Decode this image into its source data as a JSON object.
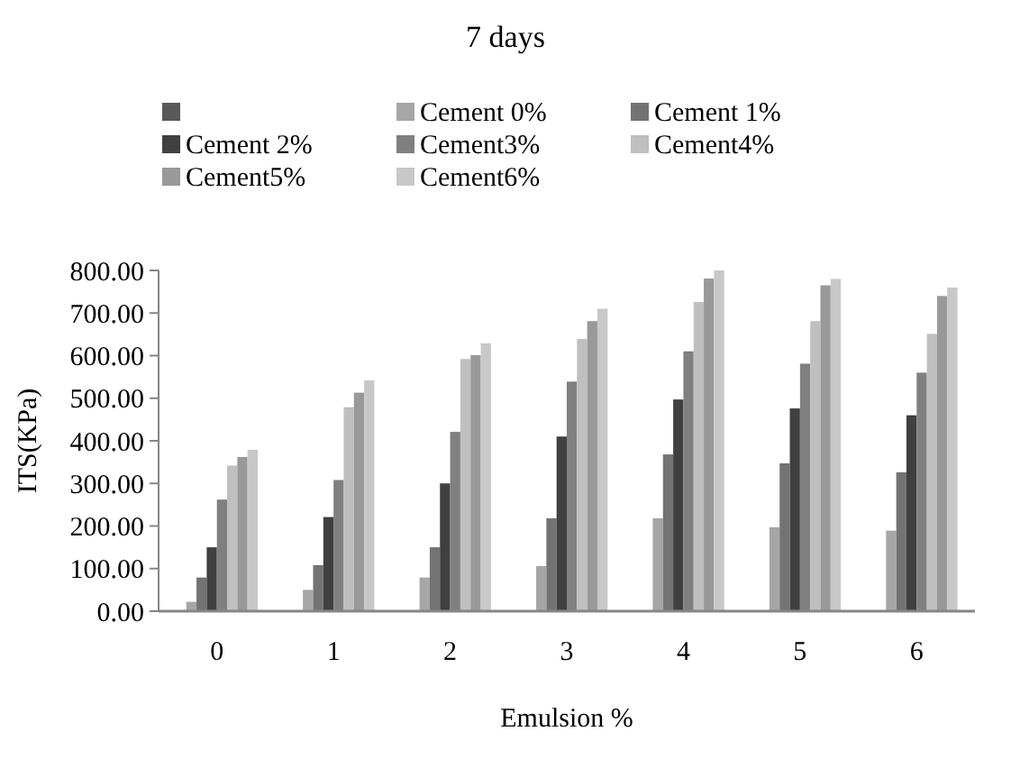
{
  "chart_data": {
    "type": "bar",
    "title": "7 days",
    "xlabel": "Emulsion %",
    "ylabel": "ITS(KPa)",
    "categories": [
      "0",
      "1",
      "2",
      "3",
      "4",
      "5",
      "6"
    ],
    "ylim": [
      0,
      800
    ],
    "yticks": [
      {
        "value": 0,
        "label": "0.00"
      },
      {
        "value": 100,
        "label": "100.00"
      },
      {
        "value": 200,
        "label": "200.00"
      },
      {
        "value": 300,
        "label": "300.00"
      },
      {
        "value": 400,
        "label": "400.00"
      },
      {
        "value": 500,
        "label": "500.00"
      },
      {
        "value": 600,
        "label": "600.00"
      },
      {
        "value": 700,
        "label": "700.00"
      },
      {
        "value": 800,
        "label": "800.00"
      }
    ],
    "legend": "top",
    "grid": false,
    "series": [
      {
        "color": "#595959",
        "values": [
          null,
          null,
          null,
          null,
          null,
          null,
          null
        ]
      },
      {
        "name": "Cement 0%",
        "color": "#a6a6a6",
        "values": [
          22,
          50,
          79,
          106,
          218,
          197,
          189
        ]
      },
      {
        "name": "Cement 1%",
        "color": "#737373",
        "values": [
          79,
          108,
          150,
          218,
          368,
          347,
          326
        ]
      },
      {
        "name": "Cement 2%",
        "color": "#404040",
        "values": [
          150,
          221,
          300,
          410,
          497,
          476,
          460
        ]
      },
      {
        "name": "Cement3%",
        "color": "#808080",
        "values": [
          262,
          308,
          421,
          539,
          610,
          581,
          560
        ]
      },
      {
        "name": "Cement4%",
        "color": "#bfbfbf",
        "values": [
          342,
          479,
          592,
          639,
          726,
          681,
          651
        ]
      },
      {
        "name": "Cement5%",
        "color": "#999999",
        "values": [
          362,
          513,
          601,
          681,
          781,
          765,
          740
        ]
      },
      {
        "name": "Cement6%",
        "color": "#c8c8c8",
        "values": [
          379,
          542,
          629,
          710,
          800,
          780,
          760
        ]
      }
    ]
  }
}
